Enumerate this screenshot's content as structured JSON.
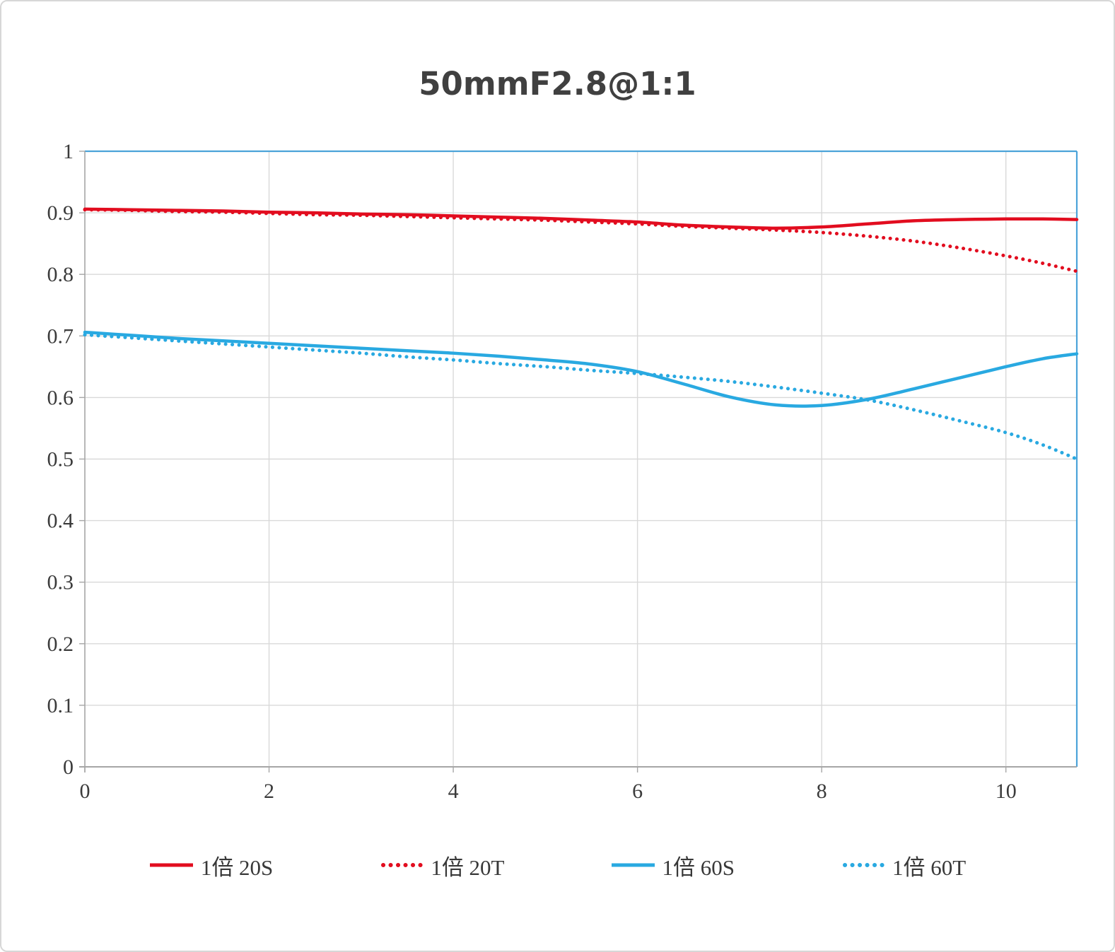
{
  "chart_data": {
    "type": "line",
    "title": "50mmF2.8@1:1",
    "xlabel": "",
    "ylabel": "",
    "xlim": [
      0,
      10.77
    ],
    "ylim": [
      0,
      1
    ],
    "grid": true,
    "legend_position": "bottom",
    "x_ticks": [
      0,
      2,
      4,
      6,
      8,
      10
    ],
    "x_tick_labels": [
      "0",
      "2",
      "4",
      "6",
      "8",
      "10"
    ],
    "y_ticks": [
      0,
      0.1,
      0.2,
      0.3,
      0.4,
      0.5,
      0.6,
      0.7,
      0.8,
      0.9,
      1
    ],
    "y_tick_labels": [
      "0",
      "0.1",
      "0.2",
      "0.3",
      "0.4",
      "0.5",
      "0.6",
      "0.7",
      "0.8",
      "0.9",
      "1"
    ],
    "colors": {
      "red": "#e20d1f",
      "blue": "#29a9e1",
      "grid": "#d9d9d9",
      "axis": "#a6a6a6",
      "plot_border": "#4ba3d9",
      "tick_text": "#3b3b3b"
    },
    "x": [
      0,
      0.5,
      1,
      1.5,
      2,
      2.5,
      3,
      3.5,
      4,
      4.5,
      5,
      5.5,
      6,
      6.5,
      7,
      7.5,
      8,
      8.5,
      9,
      9.5,
      10,
      10.4,
      10.77
    ],
    "series": [
      {
        "name": "1倍 20S",
        "color": "#e20d1f",
        "style": "solid",
        "values": [
          0.906,
          0.905,
          0.904,
          0.903,
          0.901,
          0.9,
          0.898,
          0.897,
          0.895,
          0.893,
          0.891,
          0.888,
          0.885,
          0.88,
          0.877,
          0.875,
          0.877,
          0.882,
          0.887,
          0.889,
          0.89,
          0.89,
          0.889
        ]
      },
      {
        "name": "1倍 20T",
        "color": "#e20d1f",
        "style": "dotted",
        "values": [
          0.905,
          0.904,
          0.902,
          0.901,
          0.899,
          0.897,
          0.896,
          0.894,
          0.892,
          0.89,
          0.888,
          0.885,
          0.882,
          0.878,
          0.875,
          0.872,
          0.868,
          0.862,
          0.854,
          0.843,
          0.83,
          0.818,
          0.805
        ]
      },
      {
        "name": "1倍 60S",
        "color": "#29a9e1",
        "style": "solid",
        "values": [
          0.706,
          0.701,
          0.696,
          0.692,
          0.688,
          0.684,
          0.68,
          0.676,
          0.672,
          0.667,
          0.661,
          0.654,
          0.642,
          0.622,
          0.601,
          0.588,
          0.587,
          0.597,
          0.614,
          0.632,
          0.65,
          0.663,
          0.671
        ]
      },
      {
        "name": "1倍 60T",
        "color": "#29a9e1",
        "style": "dotted",
        "values": [
          0.702,
          0.697,
          0.692,
          0.687,
          0.682,
          0.677,
          0.672,
          0.666,
          0.661,
          0.655,
          0.65,
          0.644,
          0.639,
          0.633,
          0.626,
          0.617,
          0.607,
          0.596,
          0.58,
          0.562,
          0.543,
          0.523,
          0.5
        ]
      }
    ]
  }
}
